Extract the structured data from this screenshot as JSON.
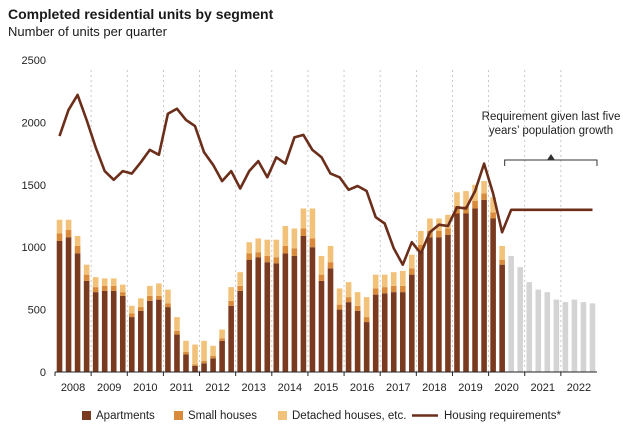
{
  "chart_data": {
    "type": "bar",
    "title": "Completed residential units by segment",
    "subtitle": "Number of units per quarter",
    "xlabel": "",
    "ylabel": "",
    "ylim": [
      0,
      2500
    ],
    "y_ticks": [
      "0",
      "500",
      "1000",
      "1500",
      "2000",
      "2500"
    ],
    "x_ticks": [
      "2008",
      "2009",
      "2010",
      "2011",
      "2012",
      "2013",
      "2014",
      "2015",
      "2016",
      "2017",
      "2018",
      "2019",
      "2020",
      "2021",
      "2022"
    ],
    "grid": "vertical dotted lines at year boundaries",
    "legend_position": "bottom",
    "quarters": [
      "2008Q1",
      "2008Q2",
      "2008Q3",
      "2008Q4",
      "2009Q1",
      "2009Q2",
      "2009Q3",
      "2009Q4",
      "2010Q1",
      "2010Q2",
      "2010Q3",
      "2010Q4",
      "2011Q1",
      "2011Q2",
      "2011Q3",
      "2011Q4",
      "2012Q1",
      "2012Q2",
      "2012Q3",
      "2012Q4",
      "2013Q1",
      "2013Q2",
      "2013Q3",
      "2013Q4",
      "2014Q1",
      "2014Q2",
      "2014Q3",
      "2014Q4",
      "2015Q1",
      "2015Q2",
      "2015Q3",
      "2015Q4",
      "2016Q1",
      "2016Q2",
      "2016Q3",
      "2016Q4",
      "2017Q1",
      "2017Q2",
      "2017Q3",
      "2017Q4",
      "2018Q1",
      "2018Q2",
      "2018Q3",
      "2018Q4",
      "2019Q1",
      "2019Q2",
      "2019Q3",
      "2019Q4",
      "2020Q1",
      "2020Q2",
      "2020Q3",
      "2020Q4",
      "2021Q1",
      "2021Q2",
      "2021Q3",
      "2021Q4",
      "2022Q1",
      "2022Q2",
      "2022Q3",
      "2022Q4"
    ],
    "series": [
      {
        "name": "Apartments",
        "color": "#7a3a20",
        "values": [
          1050,
          1080,
          950,
          730,
          640,
          650,
          650,
          610,
          440,
          490,
          570,
          580,
          520,
          300,
          140,
          50,
          70,
          110,
          250,
          530,
          650,
          900,
          920,
          880,
          870,
          950,
          930,
          1090,
          1000,
          730,
          830,
          500,
          560,
          490,
          400,
          620,
          630,
          640,
          640,
          780,
          970,
          1080,
          1080,
          1100,
          1270,
          1270,
          1310,
          1380,
          1230,
          860
        ]
      },
      {
        "name": "Small houses",
        "color": "#d98a3a",
        "values": [
          60,
          60,
          60,
          50,
          40,
          40,
          40,
          30,
          30,
          30,
          40,
          30,
          30,
          30,
          20,
          10,
          20,
          20,
          20,
          40,
          40,
          50,
          40,
          50,
          50,
          60,
          60,
          60,
          70,
          50,
          50,
          40,
          40,
          40,
          40,
          50,
          50,
          50,
          50,
          50,
          50,
          50,
          50,
          50,
          60,
          60,
          60,
          50,
          50,
          40
        ]
      },
      {
        "name": "Detached houses, etc.",
        "color": "#f2c27a",
        "values": [
          110,
          80,
          80,
          80,
          80,
          60,
          60,
          60,
          60,
          70,
          80,
          100,
          110,
          110,
          90,
          160,
          160,
          80,
          70,
          110,
          110,
          90,
          110,
          130,
          140,
          160,
          160,
          160,
          240,
          150,
          130,
          130,
          120,
          110,
          160,
          110,
          100,
          110,
          120,
          110,
          110,
          100,
          100,
          110,
          110,
          120,
          130,
          100,
          120,
          110
        ]
      },
      {
        "name": "Forecast",
        "color": "#d4d4d4",
        "values": [
          null,
          null,
          null,
          null,
          null,
          null,
          null,
          null,
          null,
          null,
          null,
          null,
          null,
          null,
          null,
          null,
          null,
          null,
          null,
          null,
          null,
          null,
          null,
          null,
          null,
          null,
          null,
          null,
          null,
          null,
          null,
          null,
          null,
          null,
          null,
          null,
          null,
          null,
          null,
          null,
          null,
          null,
          null,
          null,
          null,
          null,
          null,
          null,
          null,
          null,
          930,
          840,
          720,
          660,
          640,
          580,
          560,
          580,
          560,
          550
        ]
      },
      {
        "name": "Housing requirements*",
        "color": "#6b2e1a",
        "type": "line",
        "values": [
          1890,
          2100,
          2220,
          2020,
          1800,
          1610,
          1540,
          1610,
          1590,
          1680,
          1780,
          1740,
          2070,
          2110,
          2020,
          1970,
          1760,
          1660,
          1530,
          1610,
          1470,
          1610,
          1690,
          1560,
          1720,
          1670,
          1880,
          1900,
          1780,
          1720,
          1590,
          1560,
          1460,
          1490,
          1450,
          1240,
          1190,
          990,
          860,
          1040,
          950,
          1120,
          1180,
          1170,
          1320,
          1310,
          1450,
          1670,
          1430,
          1120,
          1300,
          1300,
          1300,
          1300,
          1300,
          1300,
          1300,
          1300,
          1300,
          1300
        ]
      }
    ],
    "annotation": [
      "Requirement given last five",
      "years’ population growth"
    ]
  },
  "legend": [
    {
      "label": "Apartments",
      "color": "#7a3a20",
      "kind": "box"
    },
    {
      "label": "Small houses",
      "color": "#d98a3a",
      "kind": "box"
    },
    {
      "label": "Detached houses, etc.",
      "color": "#f2c27a",
      "kind": "box"
    },
    {
      "label": "Housing requirements*",
      "color": "#6b2e1a",
      "kind": "line"
    }
  ]
}
